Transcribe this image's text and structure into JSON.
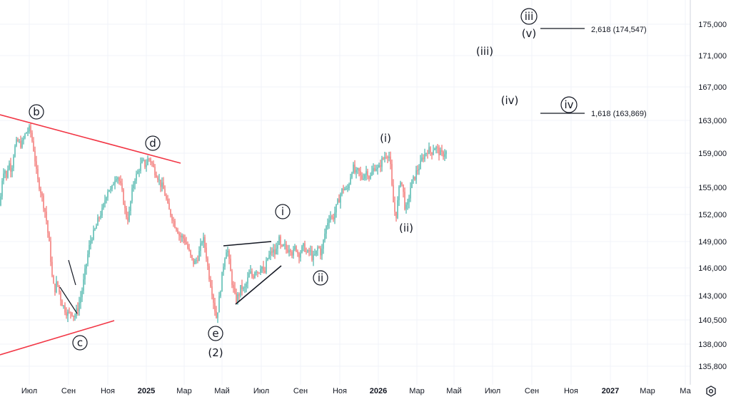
{
  "chart_data": {
    "type": "candlestick",
    "x_ticks": [
      "Июл",
      "Сен",
      "Ноя",
      "2025",
      "Мар",
      "Май",
      "Июл",
      "Сен",
      "Ноя",
      "2026",
      "Мар",
      "Май",
      "Июл",
      "Сен",
      "Ноя",
      "2027",
      "Мар",
      "Ма"
    ],
    "y_ticks": [
      "135,800",
      "138,000",
      "140,500",
      "143,000",
      "146,000",
      "149,000",
      "152,000",
      "155,000",
      "159,000",
      "163,000",
      "167,000",
      "171,000",
      "175,000"
    ],
    "y_tick_values": [
      135800,
      138000,
      140500,
      143000,
      146000,
      149000,
      152000,
      155000,
      159000,
      163000,
      167000,
      171000,
      175000
    ],
    "wave_labels": {
      "b": "b",
      "d": "d",
      "c": "c",
      "e": "e",
      "two": "(2)",
      "i_minute": "i",
      "ii_minute": "ii",
      "i_minor": "(i)",
      "ii_minor": "(ii)",
      "iii_minor": "(iii)",
      "iv_minor": "(iv)",
      "v_minor": "(v)",
      "iii_minute": "iii",
      "iv_minute": "iv"
    },
    "projections": [
      {
        "label": "2,618 (174,547)",
        "value": 174547
      },
      {
        "label": "1,618 (163,869)",
        "value": 163869
      }
    ],
    "price_path": [
      [
        0,
        153000
      ],
      [
        3,
        156000
      ],
      [
        6,
        157500
      ],
      [
        9,
        156000
      ],
      [
        12,
        158000
      ],
      [
        16,
        157000
      ],
      [
        20,
        159500
      ],
      [
        24,
        160500
      ],
      [
        30,
        160000
      ],
      [
        36,
        161500
      ],
      [
        42,
        162000
      ],
      [
        48,
        159000
      ],
      [
        52,
        156000
      ],
      [
        56,
        155000
      ],
      [
        60,
        153500
      ],
      [
        64,
        152000
      ],
      [
        67,
        150000
      ],
      [
        70,
        148000
      ],
      [
        73,
        145000
      ],
      [
        76,
        143500
      ],
      [
        80,
        144500
      ],
      [
        84,
        143000
      ],
      [
        88,
        142000
      ],
      [
        92,
        141500
      ],
      [
        96,
        141000
      ],
      [
        100,
        141500
      ],
      [
        104,
        140800
      ],
      [
        108,
        141500
      ],
      [
        112,
        142500
      ],
      [
        116,
        144000
      ],
      [
        120,
        146000
      ],
      [
        124,
        148000
      ],
      [
        128,
        149500
      ],
      [
        132,
        150000
      ],
      [
        136,
        151000
      ],
      [
        140,
        152000
      ],
      [
        144,
        152500
      ],
      [
        148,
        154000
      ],
      [
        152,
        155000
      ],
      [
        156,
        154500
      ],
      [
        160,
        156000
      ],
      [
        164,
        156500
      ],
      [
        168,
        155500
      ],
      [
        172,
        154000
      ],
      [
        176,
        152000
      ],
      [
        180,
        151500
      ],
      [
        184,
        154000
      ],
      [
        188,
        156000
      ],
      [
        192,
        156500
      ],
      [
        196,
        157500
      ],
      [
        200,
        158000
      ],
      [
        204,
        157500
      ],
      [
        208,
        158500
      ],
      [
        212,
        158000
      ],
      [
        216,
        157000
      ],
      [
        220,
        156500
      ],
      [
        224,
        155500
      ],
      [
        228,
        155000
      ],
      [
        232,
        154000
      ],
      [
        236,
        152500
      ],
      [
        240,
        152000
      ],
      [
        244,
        151000
      ],
      [
        248,
        150500
      ],
      [
        252,
        149500
      ],
      [
        256,
        149500
      ],
      [
        260,
        149000
      ],
      [
        264,
        148000
      ],
      [
        268,
        147000
      ],
      [
        272,
        146500
      ],
      [
        276,
        147000
      ],
      [
        280,
        148000
      ],
      [
        284,
        149500
      ],
      [
        288,
        148000
      ],
      [
        292,
        145500
      ],
      [
        296,
        144000
      ],
      [
        300,
        142000
      ],
      [
        303,
        140800
      ],
      [
        306,
        142000
      ],
      [
        310,
        144500
      ],
      [
        314,
        147000
      ],
      [
        318,
        148500
      ],
      [
        322,
        146000
      ],
      [
        326,
        144000
      ],
      [
        330,
        142500
      ],
      [
        334,
        143000
      ],
      [
        338,
        144000
      ],
      [
        342,
        143500
      ],
      [
        346,
        144500
      ],
      [
        350,
        145500
      ],
      [
        354,
        145000
      ],
      [
        358,
        146000
      ],
      [
        362,
        145500
      ],
      [
        366,
        146500
      ],
      [
        370,
        145000
      ],
      [
        374,
        147000
      ],
      [
        378,
        147500
      ],
      [
        382,
        148000
      ],
      [
        386,
        147500
      ],
      [
        390,
        149500
      ],
      [
        394,
        148000
      ],
      [
        398,
        148500
      ],
      [
        402,
        148000
      ],
      [
        406,
        148500
      ],
      [
        410,
        147500
      ],
      [
        414,
        148500
      ],
      [
        418,
        147500
      ],
      [
        422,
        148000
      ],
      [
        426,
        148500
      ],
      [
        430,
        147500
      ],
      [
        434,
        148000
      ],
      [
        438,
        147000
      ],
      [
        442,
        147500
      ],
      [
        446,
        148500
      ],
      [
        450,
        147500
      ],
      [
        454,
        149500
      ],
      [
        458,
        151000
      ],
      [
        462,
        152000
      ],
      [
        466,
        151500
      ],
      [
        470,
        152500
      ],
      [
        474,
        153500
      ],
      [
        478,
        154500
      ],
      [
        482,
        155000
      ],
      [
        486,
        154500
      ],
      [
        490,
        156000
      ],
      [
        494,
        157500
      ],
      [
        498,
        156500
      ],
      [
        502,
        157000
      ],
      [
        506,
        156000
      ],
      [
        510,
        156500
      ],
      [
        514,
        157000
      ],
      [
        518,
        156000
      ],
      [
        522,
        157000
      ],
      [
        526,
        157500
      ],
      [
        530,
        157000
      ],
      [
        534,
        158000
      ],
      [
        538,
        158500
      ],
      [
        542,
        159000
      ],
      [
        546,
        158500
      ],
      [
        549,
        155000
      ],
      [
        552,
        152500
      ],
      [
        555,
        152000
      ],
      [
        558,
        154000
      ],
      [
        561,
        156000
      ],
      [
        564,
        155000
      ],
      [
        567,
        153000
      ],
      [
        570,
        152500
      ],
      [
        573,
        154000
      ],
      [
        576,
        155500
      ],
      [
        580,
        156000
      ],
      [
        584,
        157000
      ],
      [
        588,
        157500
      ],
      [
        592,
        158500
      ],
      [
        596,
        159000
      ],
      [
        600,
        159500
      ],
      [
        604,
        159000
      ],
      [
        608,
        159800
      ],
      [
        612,
        159500
      ],
      [
        616,
        159000
      ],
      [
        620,
        158800
      ],
      [
        624,
        159200
      ],
      [
        626,
        159000
      ]
    ]
  },
  "axis_button": {
    "icon": "gear-icon"
  },
  "colors": {
    "up": "#26a69a",
    "down": "#ef5350",
    "trend": "#f23645",
    "grid": "#f0f3fa",
    "text": "#131722"
  }
}
